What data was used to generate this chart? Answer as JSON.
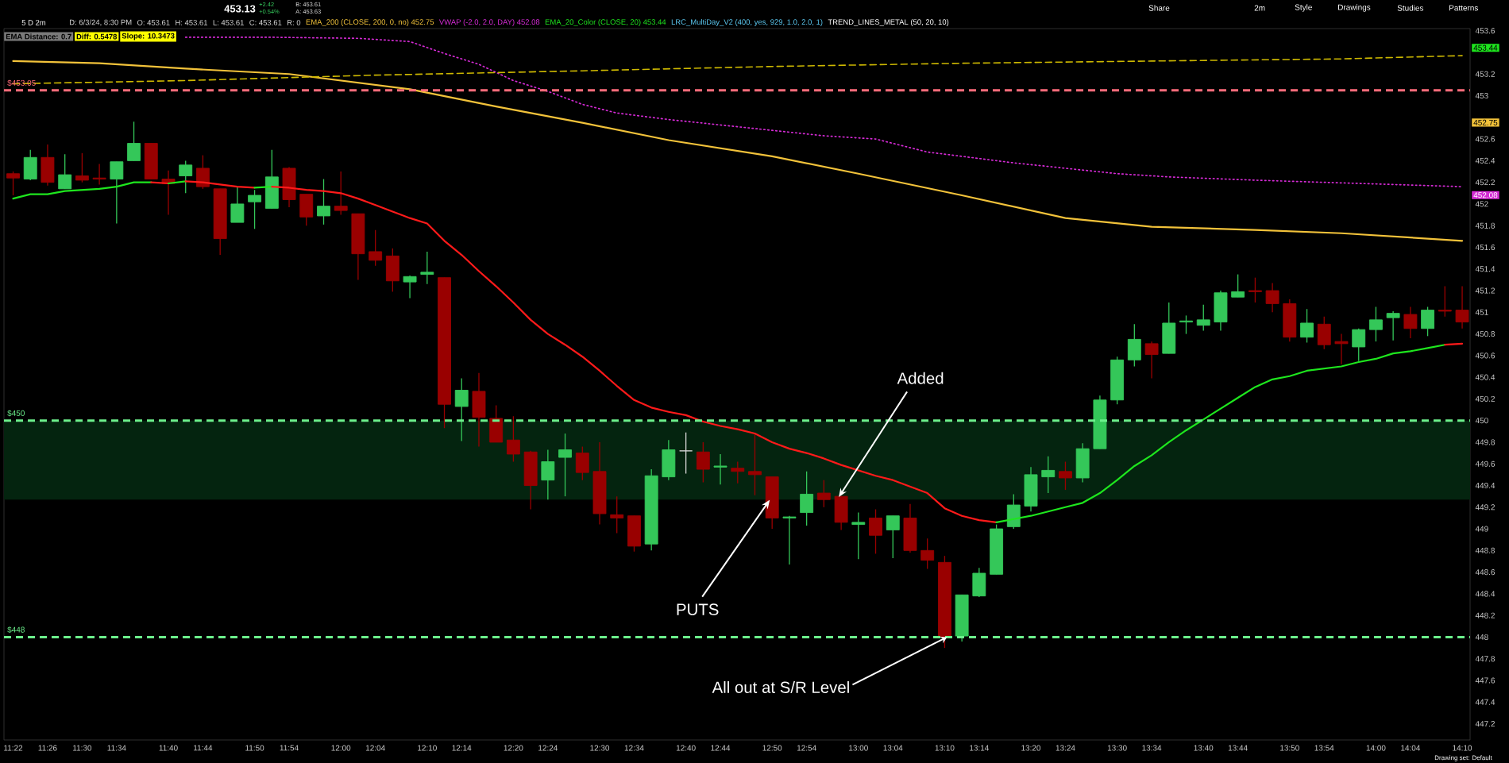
{
  "chart_data": {
    "type": "candlestick",
    "title": "5 D 2m",
    "x": [
      11.3667,
      11.4,
      11.4333,
      11.4667,
      11.5,
      11.5333,
      11.5667,
      11.6,
      11.6333,
      11.6667,
      11.7,
      11.7333,
      11.7667,
      11.8,
      11.8333,
      11.8667,
      11.9,
      11.9333,
      11.9667,
      12,
      12.0333,
      12.0667,
      12.1,
      12.1333,
      12.1667,
      12.2,
      12.2333,
      12.2667,
      12.3,
      12.3333,
      12.3667,
      12.4,
      12.4333,
      12.4667,
      12.5,
      12.5333,
      12.5667,
      12.6,
      12.6333,
      12.6667,
      12.7,
      12.7333,
      12.7667,
      12.8,
      12.8333,
      12.8667,
      12.9,
      12.9333,
      12.9667,
      13,
      13.0333,
      13.0667,
      13.1,
      13.1333,
      13.1667,
      13.2,
      13.2333,
      13.2667,
      13.3,
      13.3333,
      13.3667,
      13.4,
      13.4333,
      13.4667,
      13.5,
      13.5333,
      13.5667,
      13.6,
      13.6333,
      13.6667,
      13.7,
      13.7333,
      13.7667,
      13.8,
      13.8333,
      13.8667,
      13.9,
      13.9333,
      13.9667,
      14,
      14.0333,
      14.0667,
      14.1,
      14.1333,
      14.1667
    ],
    "ohlc": [
      [
        452.28,
        452.3,
        452.08,
        452.24
      ],
      [
        452.23,
        452.5,
        452.22,
        452.43
      ],
      [
        452.43,
        452.55,
        452.17,
        452.2
      ],
      [
        452.14,
        452.46,
        452.14,
        452.27
      ],
      [
        452.26,
        452.47,
        452.2,
        452.22
      ],
      [
        452.24,
        452.37,
        452.18,
        452.23
      ],
      [
        452.23,
        452.39,
        451.82,
        452.39
      ],
      [
        452.4,
        452.76,
        452.4,
        452.56
      ],
      [
        452.56,
        452.56,
        452.23,
        452.23
      ],
      [
        452.23,
        452.31,
        451.9,
        452.19
      ],
      [
        452.26,
        452.4,
        452.1,
        452.36
      ],
      [
        452.33,
        452.45,
        452.14,
        452.16
      ],
      [
        452.14,
        452.14,
        451.53,
        451.68
      ],
      [
        451.83,
        452.16,
        451.83,
        452
      ],
      [
        452.02,
        452.13,
        451.77,
        452.08
      ],
      [
        451.96,
        452.5,
        451.96,
        452.25
      ],
      [
        452.33,
        452.34,
        451.97,
        452.04
      ],
      [
        452.09,
        452.09,
        451.8,
        451.88
      ],
      [
        451.89,
        452.23,
        451.81,
        451.98
      ],
      [
        451.98,
        452.3,
        451.9,
        451.94
      ],
      [
        451.91,
        451.91,
        451.3,
        451.54
      ],
      [
        451.56,
        451.76,
        451.43,
        451.48
      ],
      [
        451.52,
        451.59,
        451.19,
        451.29
      ],
      [
        451.28,
        451.34,
        451.13,
        451.33
      ],
      [
        451.35,
        451.56,
        451.26,
        451.37
      ],
      [
        451.32,
        451.32,
        449.93,
        450.15
      ],
      [
        450.13,
        450.39,
        449.81,
        450.28
      ],
      [
        450.27,
        450.44,
        449.76,
        450.03
      ],
      [
        450.02,
        450.14,
        449.8,
        449.8
      ],
      [
        449.82,
        450.04,
        449.62,
        449.69
      ],
      [
        449.71,
        449.72,
        449.18,
        449.4
      ],
      [
        449.45,
        449.73,
        449.27,
        449.62
      ],
      [
        449.66,
        449.88,
        449.3,
        449.73
      ],
      [
        449.7,
        449.76,
        449.45,
        449.52
      ],
      [
        449.53,
        449.8,
        449.04,
        449.14
      ],
      [
        449.13,
        449.3,
        448.96,
        449.1
      ],
      [
        449.12,
        449.12,
        448.79,
        448.84
      ],
      [
        448.86,
        449.55,
        448.8,
        449.49
      ],
      [
        449.48,
        449.82,
        449.45,
        449.73
      ],
      [
        449.72,
        449.89,
        449.51,
        449.72
      ],
      [
        449.71,
        449.8,
        449.43,
        449.55
      ],
      [
        449.57,
        449.69,
        449.41,
        449.58
      ],
      [
        449.56,
        449.62,
        449.42,
        449.53
      ],
      [
        449.53,
        449.87,
        449.31,
        449.5
      ],
      [
        449.48,
        449.48,
        449,
        449.1
      ],
      [
        449.1,
        449.12,
        448.67,
        449.11
      ],
      [
        449.15,
        449.53,
        449.03,
        449.32
      ],
      [
        449.33,
        449.45,
        449.2,
        449.27
      ],
      [
        449.3,
        449.3,
        448.99,
        449.06
      ],
      [
        449.04,
        449.15,
        448.72,
        449.06
      ],
      [
        449.1,
        449.18,
        448.77,
        448.94
      ],
      [
        448.99,
        449.12,
        448.73,
        449.12
      ],
      [
        449.1,
        449.23,
        448.78,
        448.8
      ],
      [
        448.8,
        448.91,
        448.63,
        448.71
      ],
      [
        448.69,
        448.75,
        447.9,
        448
      ],
      [
        448.01,
        448.39,
        447.96,
        448.39
      ],
      [
        448.38,
        448.64,
        448.37,
        448.59
      ],
      [
        448.58,
        449.04,
        448.58,
        449
      ],
      [
        449.02,
        449.32,
        449,
        449.22
      ],
      [
        449.21,
        449.57,
        449.16,
        449.5
      ],
      [
        449.48,
        449.67,
        449.33,
        449.54
      ],
      [
        449.53,
        449.62,
        449.36,
        449.47
      ],
      [
        449.47,
        449.79,
        449.43,
        449.74
      ],
      [
        449.74,
        450.23,
        449.74,
        450.19
      ],
      [
        450.19,
        450.59,
        450.15,
        450.56
      ],
      [
        450.56,
        450.89,
        450.5,
        450.75
      ],
      [
        450.71,
        450.73,
        450.39,
        450.61
      ],
      [
        450.62,
        451.09,
        450.62,
        450.9
      ],
      [
        450.91,
        450.97,
        450.8,
        450.92
      ],
      [
        450.88,
        451.07,
        450.83,
        450.93
      ],
      [
        450.91,
        451.2,
        450.83,
        451.18
      ],
      [
        451.14,
        451.35,
        451.14,
        451.19
      ],
      [
        451.2,
        451.32,
        451.09,
        451.19
      ],
      [
        451.2,
        451.27,
        451,
        451.08
      ],
      [
        451.08,
        451.12,
        450.73,
        450.77
      ],
      [
        450.77,
        451.03,
        450.72,
        450.9
      ],
      [
        450.89,
        450.96,
        450.66,
        450.7
      ],
      [
        450.73,
        450.8,
        450.52,
        450.71
      ],
      [
        450.68,
        450.85,
        450.55,
        450.84
      ],
      [
        450.84,
        451.05,
        450.73,
        450.93
      ],
      [
        450.95,
        451.01,
        450.74,
        450.99
      ],
      [
        450.98,
        451.05,
        450.76,
        450.85
      ],
      [
        450.85,
        451.05,
        450.78,
        451.02
      ],
      [
        451.02,
        451.24,
        450.96,
        451.01
      ],
      [
        451.02,
        451.24,
        450.85,
        450.91
      ]
    ],
    "colors": [
      "#990000",
      "#34c759",
      "#990000",
      "#34c759",
      "#990000",
      "#990000",
      "#34c759",
      "#34c759",
      "#990000",
      "#990000",
      "#34c759",
      "#990000",
      "#990000",
      "#34c759",
      "#34c759",
      "#34c759",
      "#990000",
      "#990000",
      "#34c759",
      "#990000",
      "#990000",
      "#990000",
      "#990000",
      "#34c759",
      "#34c759",
      "#990000",
      "#34c759",
      "#990000",
      "#990000",
      "#990000",
      "#990000",
      "#34c759",
      "#34c759",
      "#990000",
      "#990000",
      "#990000",
      "#990000",
      "#34c759",
      "#34c759",
      "#d8d8d8",
      "#990000",
      "#34c759",
      "#990000",
      "#990000",
      "#990000",
      "#34c759",
      "#34c759",
      "#990000",
      "#990000",
      "#34c759",
      "#990000",
      "#34c759",
      "#990000",
      "#990000",
      "#990000",
      "#34c759",
      "#34c759",
      "#34c759",
      "#34c759",
      "#34c759",
      "#34c759",
      "#990000",
      "#34c759",
      "#34c759",
      "#34c759",
      "#34c759",
      "#990000",
      "#34c759",
      "#34c759",
      "#34c759",
      "#34c759",
      "#34c759",
      "#990000",
      "#990000",
      "#990000",
      "#34c759",
      "#990000",
      "#990000",
      "#34c759",
      "#34c759",
      "#34c759",
      "#990000",
      "#34c759",
      "#990000",
      "#990000"
    ],
    "series": [
      {
        "type": "line",
        "name": "EMA_200 (CLOSE, 200, 0, no) 452.75",
        "color": "#f2c23a",
        "line_style": "solid",
        "x": [
          11.3667,
          11.5333,
          11.7,
          11.9,
          12.1333,
          12.3,
          12.4667,
          12.6333,
          12.8333,
          13,
          13.2,
          13.4,
          13.5667,
          13.7667,
          13.9333,
          14.1667
        ],
        "values": [
          453.32,
          453.3,
          453.25,
          453.2,
          453.06,
          452.9,
          452.75,
          452.59,
          452.44,
          452.28,
          452.08,
          451.87,
          451.79,
          451.76,
          451.73,
          451.66
        ]
      },
      {
        "type": "line",
        "name": "VWAP (-2.0, 2.0, DAY) 452.08",
        "color": "#d42ad4",
        "line_style": "dotted",
        "x": [
          11.7,
          11.8667,
          12.0333,
          12.1333,
          12.2,
          12.2667,
          12.3333,
          12.4,
          12.4667,
          12.5333,
          12.6333,
          12.7333,
          12.8333,
          12.9333,
          13.0333,
          13.1333,
          13.2,
          13.3,
          13.4,
          13.5,
          13.6,
          13.7667,
          13.9667,
          14.1667
        ],
        "values": [
          453.54,
          453.54,
          453.53,
          453.5,
          453.39,
          453.29,
          453.14,
          453.04,
          452.92,
          452.84,
          452.78,
          452.73,
          452.68,
          452.63,
          452.6,
          452.48,
          452.44,
          452.38,
          452.33,
          452.28,
          452.25,
          452.22,
          452.19,
          452.16
        ]
      },
      {
        "type": "line",
        "name": "EMA_20_Color (CLOSE, 20) 453.44",
        "color": "#1ee61e",
        "line_style": "solid",
        "x": [
          11.3667,
          11.4,
          11.4333,
          11.4667,
          11.5,
          11.5333,
          11.5667,
          11.6,
          11.6333
        ],
        "values": [
          452.05,
          452.09,
          452.09,
          452.12,
          452.13,
          452.14,
          452.16,
          452.2,
          452.2
        ]
      },
      {
        "type": "line",
        "color": "#ff1a1a",
        "line_style": "solid",
        "x": [
          11.6333,
          11.6667
        ],
        "values": [
          452.2,
          452.19
        ]
      },
      {
        "type": "line",
        "color": "#1ee61e",
        "line_style": "solid",
        "x": [
          11.6667,
          11.7
        ],
        "values": [
          452.19,
          452.21
        ]
      },
      {
        "type": "line",
        "color": "#ff1a1a",
        "line_style": "solid",
        "x": [
          11.7,
          11.7333,
          11.7667,
          11.8,
          11.8333
        ],
        "values": [
          452.21,
          452.2,
          452.18,
          452.16,
          452.15
        ]
      },
      {
        "type": "line",
        "color": "#1ee61e",
        "line_style": "solid",
        "x": [
          11.8333,
          11.8667
        ],
        "values": [
          452.15,
          452.16
        ]
      },
      {
        "type": "line",
        "color": "#ff1a1a",
        "line_style": "solid",
        "x": [
          11.8667,
          11.9,
          11.9333,
          11.9667,
          12,
          12.0333,
          12.0667,
          12.1,
          12.1333,
          12.1667,
          12.2,
          12.2333,
          12.2667,
          12.3,
          12.3333,
          12.3667,
          12.4,
          12.4333,
          12.4667,
          12.5,
          12.5333,
          12.5667,
          12.6,
          12.6333,
          12.6667,
          12.7,
          12.7333,
          12.7667,
          12.8,
          12.8333,
          12.8667,
          12.9,
          12.9333,
          12.9667,
          13,
          13.0333,
          13.0667,
          13.1,
          13.1333,
          13.1667,
          13.2,
          13.2333,
          13.2667
        ],
        "values": [
          452.16,
          452.15,
          452.13,
          452.12,
          452.1,
          452.05,
          451.99,
          451.93,
          451.87,
          451.82,
          451.66,
          451.53,
          451.38,
          451.24,
          451.09,
          450.93,
          450.8,
          450.7,
          450.59,
          450.46,
          450.32,
          450.19,
          450.12,
          450.08,
          450.05,
          449.99,
          449.95,
          449.92,
          449.88,
          449.8,
          449.74,
          449.7,
          449.65,
          449.59,
          449.54,
          449.49,
          449.45,
          449.39,
          449.33,
          449.19,
          449.12,
          449.08,
          449.06
        ]
      },
      {
        "type": "line",
        "color": "#1ee61e",
        "line_style": "solid",
        "x": [
          13.2667,
          13.3,
          13.3333,
          13.3667,
          13.4,
          13.4333,
          13.4667,
          13.5,
          13.5333,
          13.5667,
          13.6,
          13.6333,
          13.6667,
          13.7,
          13.7333,
          13.7667,
          13.8,
          13.8333,
          13.8667,
          13.9,
          13.9333,
          13.9667,
          14,
          14.0333,
          14.0667,
          14.1,
          14.1333
        ],
        "values": [
          449.06,
          449.09,
          449.12,
          449.16,
          449.2,
          449.24,
          449.33,
          449.45,
          449.58,
          449.68,
          449.8,
          449.91,
          450.01,
          450.11,
          450.21,
          450.31,
          450.38,
          450.41,
          450.46,
          450.48,
          450.5,
          450.54,
          450.57,
          450.62,
          450.64,
          450.67,
          450.7
        ]
      },
      {
        "type": "line",
        "color": "#ff1a1a",
        "line_style": "solid",
        "x": [
          14.1333,
          14.1667
        ],
        "values": [
          450.7,
          450.71
        ]
      },
      {
        "type": "line",
        "color": "#cdb800",
        "line_style": "dashed",
        "x": [
          11.3667,
          11.7,
          12.0667,
          12.4667,
          12.8333,
          13.2,
          13.5667,
          13.9333,
          14.1667
        ],
        "values": [
          453.11,
          453.14,
          453.19,
          453.23,
          453.27,
          453.3,
          453.32,
          453.34,
          453.37
        ]
      }
    ],
    "xlim": [
      11.349,
      14.182
    ],
    "xticks": [
      {
        "value": 11.3667,
        "label": "11:22"
      },
      {
        "value": 11.4333,
        "label": "11:26"
      },
      {
        "value": 11.5,
        "label": "11:30"
      },
      {
        "value": 11.5667,
        "label": "11:34"
      },
      {
        "value": 11.6667,
        "label": "11:40"
      },
      {
        "value": 11.7333,
        "label": "11:44"
      },
      {
        "value": 11.8333,
        "label": "11:50"
      },
      {
        "value": 11.9,
        "label": "11:54"
      },
      {
        "value": 12,
        "label": "12:00"
      },
      {
        "value": 12.0667,
        "label": "12:04"
      },
      {
        "value": 12.1667,
        "label": "12:10"
      },
      {
        "value": 12.2333,
        "label": "12:14"
      },
      {
        "value": 12.3333,
        "label": "12:20"
      },
      {
        "value": 12.4,
        "label": "12:24"
      },
      {
        "value": 12.5,
        "label": "12:30"
      },
      {
        "value": 12.5667,
        "label": "12:34"
      },
      {
        "value": 12.6667,
        "label": "12:40"
      },
      {
        "value": 12.7333,
        "label": "12:44"
      },
      {
        "value": 12.8333,
        "label": "12:50"
      },
      {
        "value": 12.9,
        "label": "12:54"
      },
      {
        "value": 13,
        "label": "13:00"
      },
      {
        "value": 13.0667,
        "label": "13:04"
      },
      {
        "value": 13.1667,
        "label": "13:10"
      },
      {
        "value": 13.2333,
        "label": "13:14"
      },
      {
        "value": 13.3333,
        "label": "13:20"
      },
      {
        "value": 13.4,
        "label": "13:24"
      },
      {
        "value": 13.5,
        "label": "13:30"
      },
      {
        "value": 13.5667,
        "label": "13:34"
      },
      {
        "value": 13.6667,
        "label": "13:40"
      },
      {
        "value": 13.7333,
        "label": "13:44"
      },
      {
        "value": 13.8333,
        "label": "13:50"
      },
      {
        "value": 13.9,
        "label": "13:54"
      },
      {
        "value": 14,
        "label": "14:00"
      },
      {
        "value": 14.0667,
        "label": "14:04"
      },
      {
        "value": 14.1667,
        "label": "14:10"
      }
    ],
    "ylim": [
      447.05,
      453.62
    ],
    "yticks": [
      447.2,
      447.4,
      447.6,
      447.8,
      448,
      448.2,
      448.4,
      448.6,
      448.8,
      449,
      449.2,
      449.4,
      449.6,
      449.8,
      450,
      450.2,
      450.4,
      450.6,
      450.8,
      451,
      451.2,
      451.4,
      451.6,
      451.8,
      452,
      452.2,
      452.4,
      452.6,
      453,
      453.2,
      453.6
    ],
    "ref_lines": [
      {
        "axis": "y",
        "value": 453.05,
        "label": "$453.05",
        "color": "#ff6b7a",
        "line_style": "dashed"
      },
      {
        "axis": "y",
        "value": 450,
        "label": "$450",
        "color": "#6cf08c",
        "line_style": "dashed"
      },
      {
        "axis": "y",
        "value": 448,
        "label": "$448",
        "color": "#6cf08c",
        "line_style": "dashed"
      }
    ],
    "bands": [
      {
        "axis": "y",
        "from": 449.27,
        "to": 450,
        "color": "#04240f"
      }
    ],
    "legend": "top left",
    "annotations": [
      "453.13",
      "+2.42",
      "+0.54%",
      "B: 453.61",
      "A: 453.63",
      "Share",
      "2m",
      "Style",
      "Drawings",
      "Studies",
      "Patterns",
      "D: 6/3/24, 8:30 PM",
      "O: 453.61",
      "H: 453.61",
      "L: 453.61",
      "C: 453.61",
      "R: 0",
      "LRC_MultiDay_V2 (400, yes, 929, 1.0, 2.0, 1)",
      "TREND_LINES_METAL (50, 20, 10)",
      "EMA Distance: 0.7",
      "Diff: 0.5478",
      "Slope: 10.3473",
      "453.44",
      "452.75",
      "452.08",
      {
        "text": "Added",
        "x": 12.9667,
        "y": 449.3
      },
      {
        "text": "PUTS",
        "x": 12.8333,
        "y": 449.26
      },
      {
        "text": "All out at S/R Level",
        "x": 13.1667,
        "y": 448
      },
      "Drawing set: Default"
    ]
  }
}
